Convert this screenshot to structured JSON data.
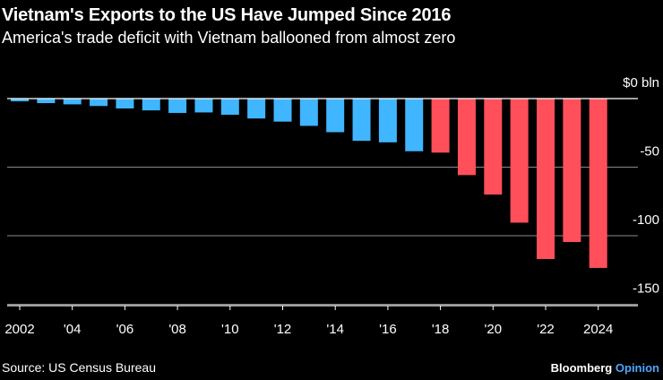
{
  "title": "Vietnam's Exports to the US Have Jumped Since 2016",
  "subtitle": "America's trade deficit with Vietnam ballooned from almost zero",
  "source": "Source: US Census Bureau",
  "brand": {
    "name": "Bloomberg",
    "suffix": "Opinion"
  },
  "colors": {
    "background": "#000000",
    "pre2018": "#3fb6ff",
    "post2018": "#ff4f5a",
    "grid": "#8a8a8a",
    "text": "#ffffff"
  },
  "chart_data": {
    "type": "bar",
    "title": "Vietnam's Exports to the US Have Jumped Since 2016",
    "subtitle": "America's trade deficit with Vietnam ballooned from almost zero",
    "xlabel": "",
    "ylabel": "$ bln",
    "ylim": [
      -150,
      0
    ],
    "y_ticks": [
      {
        "value": 0,
        "label": "$0 bln"
      },
      {
        "value": -50,
        "label": "-50"
      },
      {
        "value": -100,
        "label": "-100"
      },
      {
        "value": -150,
        "label": "-150"
      }
    ],
    "x_tick_labels": [
      "2002",
      "'04",
      "'06",
      "'08",
      "'10",
      "'12",
      "'14",
      "'16",
      "'18",
      "'20",
      "'22",
      "2024"
    ],
    "categories": [
      "2002",
      "2003",
      "2004",
      "2005",
      "2006",
      "2007",
      "2008",
      "2009",
      "2010",
      "2011",
      "2012",
      "2013",
      "2014",
      "2015",
      "2016",
      "2017",
      "2018",
      "2019",
      "2020",
      "2021",
      "2022",
      "2023",
      "2024"
    ],
    "values": [
      -2,
      -3.3,
      -4.2,
      -5.4,
      -7.2,
      -8.6,
      -10.5,
      -10.1,
      -11.8,
      -14.5,
      -16.8,
      -19.9,
      -24.5,
      -30.8,
      -31.9,
      -38.4,
      -39.4,
      -55.8,
      -70,
      -90.5,
      -117,
      -104.6,
      -123.5
    ],
    "highlight_from": "2018",
    "grid": true,
    "legend": "none"
  }
}
